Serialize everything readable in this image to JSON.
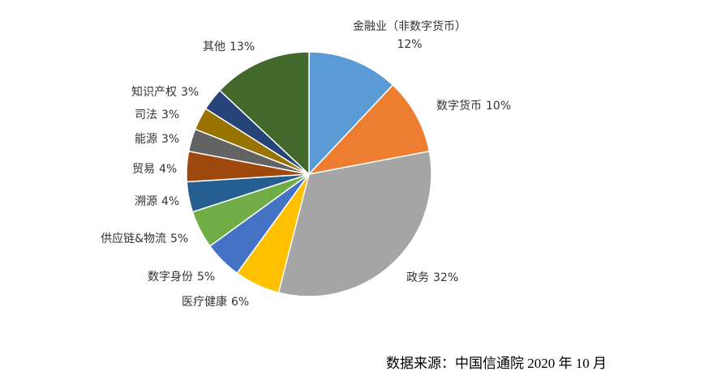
{
  "chart_data": {
    "type": "pie",
    "categories": [
      "金融业（非数字货币）",
      "数字货币",
      "政务",
      "医疗健康",
      "数字身份",
      "供应链&物流",
      "溯源",
      "贸易",
      "能源",
      "司法",
      "知识产权",
      "其他"
    ],
    "values": [
      12,
      10,
      32,
      6,
      5,
      5,
      4,
      4,
      3,
      3,
      3,
      13
    ],
    "value_labels": [
      "12%",
      "10%",
      "32%",
      "6%",
      "5%",
      "5%",
      "4%",
      "4%",
      "3%",
      "3%",
      "3%",
      "13%"
    ],
    "colors": [
      "#5b9bd5",
      "#ed7d31",
      "#a5a5a5",
      "#ffc000",
      "#4472c4",
      "#70ad47",
      "#255e91",
      "#9e480e",
      "#636363",
      "#997300",
      "#264478",
      "#43682b"
    ],
    "source": "数据来源：中国信通院 2020 年 10 月"
  }
}
